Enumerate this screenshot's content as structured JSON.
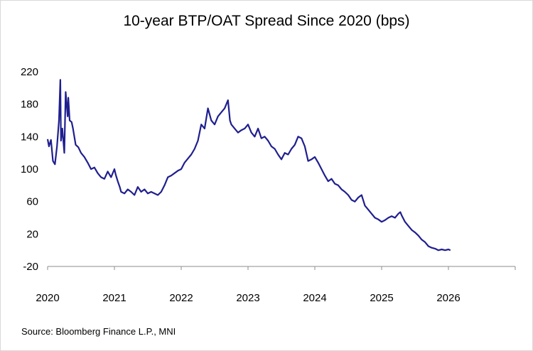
{
  "chart_data": {
    "type": "line",
    "title": "10-year BTP/OAT Spread Since 2020 (bps)",
    "xlabel": "",
    "ylabel": "",
    "xlim": [
      2020,
      2027
    ],
    "ylim": [
      -20,
      220
    ],
    "y_ticks": [
      -20,
      20,
      60,
      100,
      140,
      180,
      220
    ],
    "x_ticks": [
      2020,
      2021,
      2022,
      2023,
      2024,
      2025,
      2026
    ],
    "grid": false,
    "series": [
      {
        "name": "10-year BTP/OAT Spread",
        "color": "#1f1f8f",
        "x": [
          2020.0,
          2020.02,
          2020.05,
          2020.08,
          2020.11,
          2020.14,
          2020.17,
          2020.19,
          2020.2,
          2020.22,
          2020.25,
          2020.27,
          2020.3,
          2020.31,
          2020.33,
          2020.36,
          2020.38,
          2020.42,
          2020.46,
          2020.5,
          2020.55,
          2020.6,
          2020.65,
          2020.7,
          2020.75,
          2020.8,
          2020.85,
          2020.9,
          2020.95,
          2021.0,
          2021.02,
          2021.05,
          2021.08,
          2021.1,
          2021.15,
          2021.2,
          2021.25,
          2021.3,
          2021.35,
          2021.4,
          2021.45,
          2021.5,
          2021.55,
          2021.6,
          2021.65,
          2021.7,
          2021.75,
          2021.8,
          2021.85,
          2021.9,
          2021.95,
          2022.0,
          2022.05,
          2022.1,
          2022.15,
          2022.2,
          2022.25,
          2022.3,
          2022.35,
          2022.4,
          2022.45,
          2022.5,
          2022.55,
          2022.6,
          2022.65,
          2022.7,
          2022.73,
          2022.75,
          2022.8,
          2022.85,
          2022.9,
          2022.95,
          2023.0,
          2023.05,
          2023.1,
          2023.15,
          2023.2,
          2023.25,
          2023.3,
          2023.35,
          2023.4,
          2023.45,
          2023.5,
          2023.55,
          2023.6,
          2023.65,
          2023.7,
          2023.75,
          2023.8,
          2023.85,
          2023.9,
          2023.95,
          2024.0,
          2024.05,
          2024.1,
          2024.15,
          2024.2,
          2024.25,
          2024.3,
          2024.35,
          2024.4,
          2024.45,
          2024.5,
          2024.55,
          2024.6,
          2024.65,
          2024.7,
          2024.75,
          2024.8,
          2024.85,
          2024.9,
          2024.95,
          2025.0,
          2025.05,
          2025.1,
          2025.15,
          2025.2,
          2025.25,
          2025.28,
          2025.3,
          2025.35,
          2025.4,
          2025.45,
          2025.5,
          2025.55,
          2025.6,
          2025.65,
          2025.7,
          2025.75,
          2025.8,
          2025.85,
          2025.9,
          2025.95,
          2026.0,
          2026.03
        ],
        "values": [
          137,
          128,
          136,
          110,
          106,
          128,
          160,
          210,
          135,
          150,
          120,
          195,
          165,
          188,
          160,
          158,
          150,
          130,
          127,
          120,
          115,
          108,
          100,
          102,
          95,
          90,
          88,
          97,
          90,
          100,
          93,
          85,
          78,
          72,
          70,
          75,
          72,
          68,
          78,
          72,
          75,
          70,
          72,
          70,
          68,
          72,
          80,
          90,
          92,
          95,
          98,
          100,
          108,
          113,
          118,
          125,
          135,
          155,
          150,
          175,
          160,
          155,
          165,
          170,
          175,
          185,
          160,
          155,
          150,
          145,
          148,
          150,
          155,
          145,
          140,
          150,
          138,
          140,
          135,
          128,
          125,
          118,
          112,
          120,
          118,
          125,
          130,
          140,
          138,
          128,
          110,
          112,
          115,
          108,
          100,
          92,
          85,
          88,
          82,
          80,
          75,
          72,
          68,
          62,
          60,
          65,
          68,
          55,
          50,
          45,
          40,
          38,
          35,
          37,
          40,
          42,
          40,
          45,
          47,
          43,
          35,
          30,
          25,
          22,
          18,
          13,
          10,
          5,
          3,
          2,
          0,
          1,
          0,
          1,
          0
        ]
      }
    ]
  },
  "source": "Source: Bloomberg Finance L.P., MNI"
}
